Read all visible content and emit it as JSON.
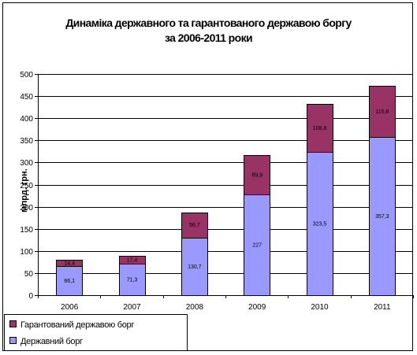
{
  "chart_data": {
    "type": "bar",
    "stacked": true,
    "title_lines": [
      "Динаміка державного та гарантованого державою боргу",
      "за 2006-2011 роки"
    ],
    "ylabel": "млрд. грн.",
    "xlabel": "",
    "categories": [
      "2006",
      "2007",
      "2008",
      "2009",
      "2010",
      "2011"
    ],
    "ylim": [
      0,
      500
    ],
    "yticks": [
      0,
      50,
      100,
      150,
      200,
      250,
      300,
      350,
      400,
      450,
      500
    ],
    "grid": true,
    "legend_position": "bottom-left",
    "series": [
      {
        "name": "Державний борг",
        "color": "#9999ff",
        "values": [
          66.1,
          71.3,
          130.7,
          227,
          323.5,
          357.3
        ],
        "labels": [
          "66,1",
          "71,3",
          "130,7",
          "227",
          "323,5",
          "357,3"
        ]
      },
      {
        "name": "Гарантований державою борг",
        "color": "#993366",
        "values": [
          14.4,
          17.4,
          56.7,
          89.9,
          108.8,
          115.8
        ],
        "labels": [
          "14,4",
          "17,4",
          "56,7",
          "89,9",
          "108,8",
          "115,8"
        ]
      }
    ]
  }
}
